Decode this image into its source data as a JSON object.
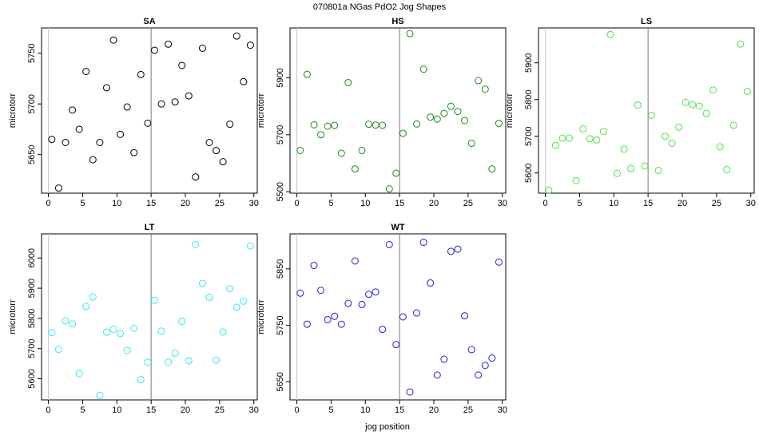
{
  "title": "070801a   NGas PdO2 Jog Shapes",
  "xlabel": "jog position",
  "chart_data": [
    {
      "type": "scatter",
      "title": "SA",
      "ylabel": "microtorr",
      "color": "#000000",
      "vline": 15,
      "xlim": [
        -1,
        30.5
      ],
      "ylim": [
        5612,
        5775
      ],
      "xticks": [
        0,
        5,
        10,
        15,
        20,
        25,
        30
      ],
      "yticks": [
        5650,
        5700,
        5750
      ],
      "x": [
        0.5,
        1.5,
        2.5,
        3.5,
        4.5,
        5.5,
        6.5,
        7.5,
        8.5,
        9.5,
        10.5,
        11.5,
        12.5,
        13.5,
        14.5,
        15.5,
        16.5,
        17.5,
        18.5,
        19.5,
        20.5,
        21.5,
        22.5,
        23.5,
        24.5,
        25.5,
        26.5,
        27.5,
        28.5,
        29.5
      ],
      "y": [
        5665,
        5617,
        5662,
        5694,
        5675,
        5732,
        5645,
        5662,
        5716,
        5763,
        5670,
        5697,
        5652,
        5729,
        5681,
        5753,
        5700,
        5759,
        5702,
        5738,
        5708,
        5628,
        5755,
        5662,
        5654,
        5643,
        5680,
        5767,
        5722,
        5758
      ]
    },
    {
      "type": "scatter",
      "title": "HS",
      "ylabel": "microtorr",
      "color": "#1a8a1a",
      "vline": 15,
      "xlim": [
        -1,
        30.5
      ],
      "ylim": [
        5495,
        6075
      ],
      "xticks": [
        0,
        5,
        10,
        15,
        20,
        25,
        30
      ],
      "yticks": [
        5500,
        5700,
        5900
      ],
      "x": [
        0.5,
        1.5,
        2.5,
        3.5,
        4.5,
        5.5,
        6.5,
        7.5,
        8.5,
        9.5,
        10.5,
        11.5,
        12.5,
        13.5,
        14.5,
        15.5,
        16.5,
        17.5,
        18.5,
        19.5,
        20.5,
        21.5,
        22.5,
        23.5,
        24.5,
        25.5,
        26.5,
        27.5,
        28.5,
        29.5
      ],
      "y": [
        5645,
        5912,
        5735,
        5700,
        5730,
        5733,
        5635,
        5883,
        5580,
        5645,
        5737,
        5734,
        5733,
        5510,
        5565,
        5705,
        6055,
        5738,
        5930,
        5762,
        5755,
        5775,
        5800,
        5782,
        5750,
        5670,
        5890,
        5860,
        5580,
        5740
      ]
    },
    {
      "type": "scatter",
      "title": "LS",
      "ylabel": "microtorr",
      "color": "#4ee14e",
      "vline": 15,
      "xlim": [
        -1,
        30.5
      ],
      "ylim": [
        5545,
        5995
      ],
      "xticks": [
        0,
        5,
        10,
        15,
        20,
        25,
        30
      ],
      "yticks": [
        5600,
        5700,
        5800,
        5900
      ],
      "x": [
        0.5,
        1.5,
        2.5,
        3.5,
        4.5,
        5.5,
        6.5,
        7.5,
        8.5,
        9.5,
        10.5,
        11.5,
        12.5,
        13.5,
        14.5,
        15.5,
        16.5,
        17.5,
        18.5,
        19.5,
        20.5,
        21.5,
        22.5,
        23.5,
        24.5,
        25.5,
        26.5,
        27.5,
        28.5,
        29.5
      ],
      "y": [
        5553,
        5675,
        5695,
        5695,
        5579,
        5720,
        5693,
        5690,
        5713,
        5977,
        5599,
        5665,
        5612,
        5785,
        5619,
        5757,
        5607,
        5700,
        5681,
        5725,
        5792,
        5786,
        5782,
        5762,
        5826,
        5671,
        5609,
        5730,
        5951,
        5822
      ]
    },
    {
      "type": "scatter",
      "title": "LT",
      "ylabel": "microtorr",
      "color": "#38e8ee",
      "vline": 15,
      "xlim": [
        -1,
        30.5
      ],
      "ylim": [
        5530,
        6080
      ],
      "xticks": [
        0,
        5,
        10,
        15,
        20,
        25,
        30
      ],
      "yticks": [
        5600,
        5700,
        5800,
        5900,
        6000
      ],
      "x": [
        0.5,
        1.5,
        2.5,
        3.5,
        4.5,
        5.5,
        6.5,
        7.5,
        8.5,
        9.5,
        10.5,
        11.5,
        12.5,
        13.5,
        14.5,
        15.5,
        16.5,
        17.5,
        18.5,
        19.5,
        20.5,
        21.5,
        22.5,
        23.5,
        24.5,
        25.5,
        26.5,
        27.5,
        28.5,
        29.5
      ],
      "y": [
        5753,
        5697,
        5792,
        5782,
        5617,
        5840,
        5871,
        5545,
        5754,
        5764,
        5750,
        5694,
        5767,
        5597,
        5655,
        5860,
        5758,
        5655,
        5685,
        5790,
        5660,
        6045,
        5916,
        5870,
        5662,
        5755,
        5898,
        5837,
        5857,
        6040
      ]
    },
    {
      "type": "scatter",
      "title": "WT",
      "ylabel": "microtorr",
      "color": "#2020d8",
      "vline": 15,
      "xlim": [
        -1,
        30.5
      ],
      "ylim": [
        5618,
        5912
      ],
      "xticks": [
        0,
        5,
        10,
        15,
        20,
        25,
        30
      ],
      "yticks": [
        5650,
        5750,
        5850
      ],
      "x": [
        0.5,
        1.5,
        2.5,
        3.5,
        4.5,
        5.5,
        6.5,
        7.5,
        8.5,
        9.5,
        10.5,
        11.5,
        12.5,
        13.5,
        14.5,
        15.5,
        16.5,
        17.5,
        18.5,
        19.5,
        20.5,
        21.5,
        22.5,
        23.5,
        24.5,
        25.5,
        26.5,
        27.5,
        28.5,
        29.5
      ],
      "y": [
        5807,
        5752,
        5856,
        5812,
        5760,
        5766,
        5752,
        5789,
        5864,
        5787,
        5805,
        5809,
        5743,
        5893,
        5716,
        5765,
        5632,
        5772,
        5897,
        5825,
        5662,
        5690,
        5881,
        5885,
        5767,
        5707,
        5662,
        5679,
        5692,
        5862
      ]
    }
  ]
}
